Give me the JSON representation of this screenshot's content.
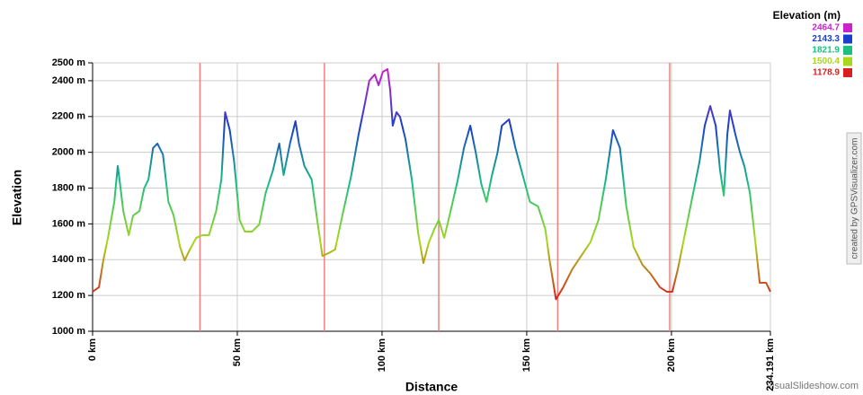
{
  "chart_data": {
    "type": "line",
    "xlabel": "Distance",
    "ylabel": "Elevation",
    "x": [
      0,
      2.2,
      3.7,
      5.3,
      7.5,
      8.7,
      9.3,
      10.6,
      12.5,
      14.0,
      16.2,
      17.8,
      19.3,
      20.9,
      22.4,
      24.3,
      26.2,
      28.0,
      30.2,
      31.8,
      33.3,
      35.8,
      38.0,
      40.2,
      42.7,
      44.5,
      45.8,
      47.4,
      48.9,
      50.8,
      52.6,
      55.1,
      57.6,
      59.8,
      62.3,
      64.5,
      66.0,
      68.2,
      70.1,
      71.3,
      73.2,
      75.7,
      77.6,
      79.4,
      81.6,
      83.8,
      86.3,
      89.4,
      91.9,
      94.1,
      95.6,
      97.5,
      98.8,
      100.3,
      101.9,
      102.8,
      103.7,
      105.0,
      106.2,
      108.1,
      110.3,
      112.5,
      114.3,
      116.2,
      118.1,
      119.6,
      121.5,
      123.7,
      126.2,
      128.3,
      130.5,
      132.4,
      134.3,
      136.1,
      138.0,
      139.9,
      141.4,
      143.9,
      146.1,
      148.6,
      151.1,
      153.9,
      156.4,
      157.9,
      160.1,
      162.6,
      165.7,
      168.8,
      172.0,
      174.8,
      177.3,
      179.8,
      182.2,
      184.4,
      186.9,
      190.0,
      192.8,
      196.0,
      198.4,
      200.3,
      202.2,
      204.7,
      207.2,
      209.7,
      211.5,
      213.4,
      215.3,
      216.8,
      218.1,
      219.3,
      220.2,
      222.1,
      223.7,
      225.2,
      227.1,
      229.0,
      230.5,
      232.7,
      234.191
    ],
    "series": [
      {
        "name": "Elevation",
        "values": [
          1221,
          1246,
          1396,
          1522,
          1723,
          1923,
          1848,
          1672,
          1537,
          1647,
          1672,
          1798,
          1848,
          2024,
          2049,
          1988,
          1723,
          1647,
          1472,
          1396,
          1447,
          1522,
          1537,
          1537,
          1672,
          1848,
          2224,
          2124,
          1948,
          1622,
          1557,
          1557,
          1597,
          1773,
          1898,
          2049,
          1873,
          2049,
          2174,
          2049,
          1923,
          1848,
          1622,
          1421,
          1437,
          1457,
          1647,
          1873,
          2099,
          2274,
          2400,
          2435,
          2375,
          2450,
          2464.7,
          2350,
          2149,
          2224,
          2199,
          2074,
          1848,
          1547,
          1381,
          1497,
          1572,
          1622,
          1522,
          1672,
          1848,
          2024,
          2149,
          1998,
          1823,
          1723,
          1873,
          1998,
          2149,
          2184,
          2024,
          1873,
          1723,
          1698,
          1572,
          1396,
          1178.9,
          1246,
          1346,
          1421,
          1497,
          1622,
          1848,
          2124,
          2024,
          1698,
          1472,
          1371,
          1321,
          1246,
          1221,
          1221,
          1346,
          1547,
          1748,
          1948,
          2149,
          2259,
          2149,
          1898,
          1758,
          2099,
          2234,
          2099,
          1998,
          1923,
          1773,
          1497,
          1271,
          1271,
          1221
        ]
      }
    ],
    "xlim": [
      0,
      234.191
    ],
    "ylim": [
      1000,
      2500
    ],
    "xticks": [
      {
        "value": 0,
        "label": "0 km"
      },
      {
        "value": 50,
        "label": "50 km"
      },
      {
        "value": 100,
        "label": "100 km"
      },
      {
        "value": 150,
        "label": "150 km"
      },
      {
        "value": 200,
        "label": "200 km"
      },
      {
        "value": 234.191,
        "label": "234.191 km"
      }
    ],
    "yticks": [
      {
        "value": 1000,
        "label": "1000 m"
      },
      {
        "value": 1200,
        "label": "1200 m"
      },
      {
        "value": 1400,
        "label": "1400 m"
      },
      {
        "value": 1600,
        "label": "1600 m"
      },
      {
        "value": 1800,
        "label": "1800 m"
      },
      {
        "value": 2000,
        "label": "2000 m"
      },
      {
        "value": 2200,
        "label": "2200 m"
      },
      {
        "value": 2400,
        "label": "2400 m"
      },
      {
        "value": 2500,
        "label": "2500 m"
      }
    ],
    "grid": true,
    "markers": {
      "color": "#f08080",
      "x": [
        37.1,
        80.1,
        119.6,
        160.7,
        199.4
      ]
    },
    "legend": {
      "title": "Elevation (m)",
      "position": "top-right",
      "values": [
        2464.7,
        2143.3,
        1821.9,
        1500.4,
        1178.9
      ],
      "colors": [
        "#cc22cc",
        "#1a3fcc",
        "#19c080",
        "#a8d81a",
        "#d82020"
      ]
    }
  },
  "watermark": "created by GPSVisualizer.com",
  "footer": "VisualSlideshow.com"
}
